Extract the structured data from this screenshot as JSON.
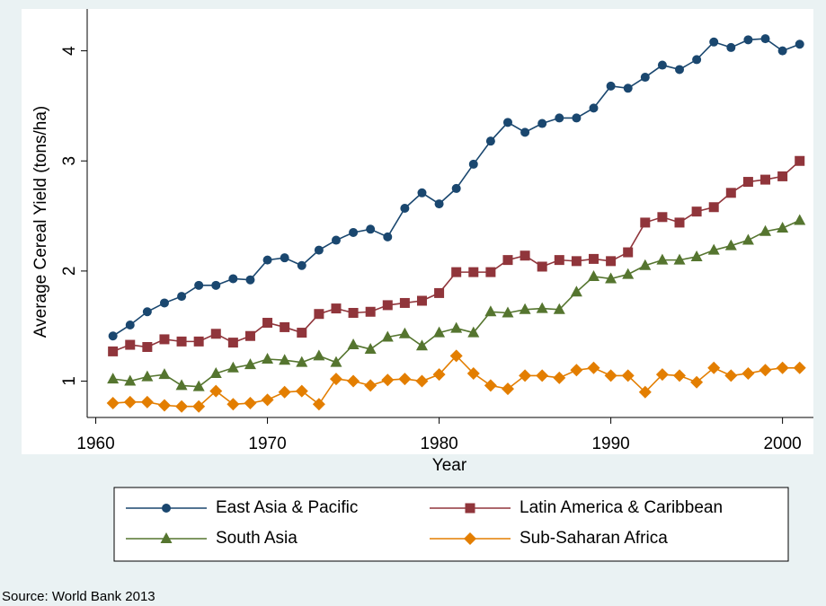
{
  "chart_data": {
    "type": "line",
    "x_label": "Year",
    "y_label": "Average Cereal Yield (tons/ha)",
    "source": "Source: World Bank 2013",
    "x": [
      1961,
      1962,
      1963,
      1964,
      1965,
      1966,
      1967,
      1968,
      1969,
      1970,
      1971,
      1972,
      1973,
      1974,
      1975,
      1976,
      1977,
      1978,
      1979,
      1980,
      1981,
      1982,
      1983,
      1984,
      1985,
      1986,
      1987,
      1988,
      1989,
      1990,
      1991,
      1992,
      1993,
      1994,
      1995,
      1996,
      1997,
      1998,
      1999,
      2000,
      2001
    ],
    "series": [
      {
        "name": "East Asia & Pacific",
        "color": "#1a476f",
        "marker": "circle",
        "values": [
          1.41,
          1.51,
          1.63,
          1.71,
          1.77,
          1.87,
          1.87,
          1.93,
          1.92,
          2.1,
          2.12,
          2.05,
          2.19,
          2.28,
          2.35,
          2.38,
          2.31,
          2.57,
          2.71,
          2.61,
          2.75,
          2.97,
          3.18,
          3.35,
          3.26,
          3.34,
          3.39,
          3.39,
          3.48,
          3.68,
          3.66,
          3.76,
          3.87,
          3.83,
          3.92,
          4.08,
          4.03,
          4.1,
          4.11,
          4.0,
          4.06
        ]
      },
      {
        "name": "Latin America & Caribbean",
        "color": "#90353b",
        "marker": "square",
        "values": [
          1.27,
          1.33,
          1.31,
          1.38,
          1.36,
          1.36,
          1.43,
          1.35,
          1.41,
          1.53,
          1.49,
          1.44,
          1.61,
          1.66,
          1.62,
          1.63,
          1.69,
          1.71,
          1.73,
          1.8,
          1.99,
          1.99,
          1.99,
          2.1,
          2.14,
          2.04,
          2.1,
          2.09,
          2.11,
          2.09,
          2.17,
          2.44,
          2.49,
          2.44,
          2.54,
          2.58,
          2.71,
          2.81,
          2.83,
          2.86,
          3.0
        ]
      },
      {
        "name": "South Asia",
        "color": "#55752f",
        "marker": "triangle",
        "values": [
          1.02,
          1.0,
          1.04,
          1.06,
          0.96,
          0.95,
          1.07,
          1.12,
          1.15,
          1.2,
          1.19,
          1.17,
          1.23,
          1.17,
          1.33,
          1.29,
          1.4,
          1.43,
          1.32,
          1.44,
          1.48,
          1.44,
          1.63,
          1.62,
          1.65,
          1.66,
          1.65,
          1.81,
          1.95,
          1.93,
          1.97,
          2.05,
          2.1,
          2.1,
          2.13,
          2.19,
          2.23,
          2.28,
          2.36,
          2.39,
          2.46
        ]
      },
      {
        "name": "Sub-Saharan Africa",
        "color": "#e37e00",
        "marker": "diamond",
        "values": [
          0.8,
          0.81,
          0.81,
          0.78,
          0.77,
          0.77,
          0.91,
          0.79,
          0.8,
          0.83,
          0.9,
          0.91,
          0.79,
          1.02,
          1.0,
          0.96,
          1.01,
          1.02,
          1.0,
          1.06,
          1.23,
          1.07,
          0.96,
          0.93,
          1.05,
          1.05,
          1.03,
          1.1,
          1.12,
          1.05,
          1.05,
          0.9,
          1.06,
          1.05,
          0.99,
          1.12,
          1.05,
          1.07,
          1.1,
          1.12,
          1.12
        ]
      }
    ],
    "xlim": [
      1959.5,
      2001.8
    ],
    "xticks": [
      1960,
      1970,
      1980,
      1990,
      2000
    ],
    "ylim": [
      0.67,
      4.38
    ],
    "yticks": [
      1,
      2,
      3,
      4
    ]
  }
}
